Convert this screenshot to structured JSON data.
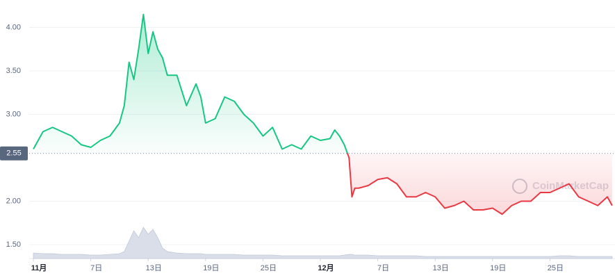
{
  "chart_data": {
    "type": "line",
    "watermark": "CoinMarketCap",
    "baseline": 2.55,
    "x": [
      0,
      1,
      2,
      3,
      4,
      5,
      6,
      7,
      8,
      9,
      9.5,
      10,
      10.5,
      11,
      11.5,
      12,
      12.5,
      13,
      13.5,
      14,
      15,
      16,
      17,
      17.5,
      18,
      19,
      20,
      21,
      22,
      23,
      24,
      25,
      26,
      27,
      28,
      29,
      30,
      31,
      31.5,
      32,
      32.5,
      33,
      33.3,
      33.6,
      34,
      35,
      36,
      37,
      38,
      39,
      40,
      41,
      42,
      43,
      44,
      45,
      46,
      47,
      48,
      49,
      50,
      51,
      52,
      53,
      54,
      55,
      56,
      57,
      58,
      59,
      60,
      60.5
    ],
    "series": [
      {
        "name": "price",
        "color": "#16c784",
        "color_below": "#ea3943",
        "values": [
          2.6,
          2.8,
          2.85,
          2.8,
          2.75,
          2.65,
          2.62,
          2.7,
          2.75,
          2.9,
          3.1,
          3.6,
          3.4,
          3.75,
          4.15,
          3.7,
          3.95,
          3.75,
          3.65,
          3.45,
          3.45,
          3.1,
          3.35,
          3.2,
          2.9,
          2.95,
          3.2,
          3.15,
          3.0,
          2.9,
          2.75,
          2.85,
          2.6,
          2.65,
          2.6,
          2.75,
          2.7,
          2.72,
          2.82,
          2.75,
          2.65,
          2.5,
          2.05,
          2.15,
          2.15,
          2.18,
          2.25,
          2.27,
          2.2,
          2.05,
          2.05,
          2.1,
          2.05,
          1.92,
          1.95,
          2.0,
          1.9,
          1.9,
          1.92,
          1.85,
          1.95,
          2.0,
          2.0,
          2.1,
          2.1,
          2.15,
          2.2,
          2.05,
          2.0,
          1.95,
          2.05,
          1.95
        ]
      },
      {
        "name": "volume",
        "color": "#cfd6e4",
        "axis": "y2",
        "values": [
          8,
          7,
          7,
          6,
          6,
          6,
          5,
          5,
          6,
          7,
          10,
          25,
          40,
          30,
          45,
          35,
          42,
          30,
          15,
          10,
          8,
          7,
          7,
          7,
          6,
          6,
          6,
          6,
          5,
          5,
          5,
          5,
          4,
          4,
          4,
          4,
          4,
          4,
          4,
          4,
          5,
          6,
          6,
          5,
          5,
          5,
          4,
          4,
          4,
          4,
          4,
          3,
          3,
          3,
          3,
          3,
          3,
          3,
          3,
          3,
          3,
          3,
          3,
          3,
          3,
          4,
          4,
          3,
          3,
          3,
          3,
          3
        ]
      }
    ],
    "xlim": [
      -0.44,
      60.8
    ],
    "ylim": [
      1.34,
      4.2
    ],
    "y2lim": [
      0,
      60
    ],
    "yticks": [
      {
        "value": 1.5,
        "label": "1.50"
      },
      {
        "value": 2,
        "label": "2.00"
      },
      {
        "value": 3,
        "label": "3.00"
      },
      {
        "value": 3.5,
        "label": "3.50"
      },
      {
        "value": 4,
        "label": "4.00"
      }
    ],
    "xticks": [
      {
        "value": 0,
        "label": "11月",
        "bold": true
      },
      {
        "value": 6,
        "label": "7日"
      },
      {
        "value": 12,
        "label": "13日"
      },
      {
        "value": 18,
        "label": "19日"
      },
      {
        "value": 24,
        "label": "25日"
      },
      {
        "value": 30,
        "label": "12月",
        "bold": true
      },
      {
        "value": 36,
        "label": "7日"
      },
      {
        "value": 42,
        "label": "13日"
      },
      {
        "value": 48,
        "label": "19日"
      },
      {
        "value": 54,
        "label": "25日"
      }
    ],
    "grid": true
  }
}
